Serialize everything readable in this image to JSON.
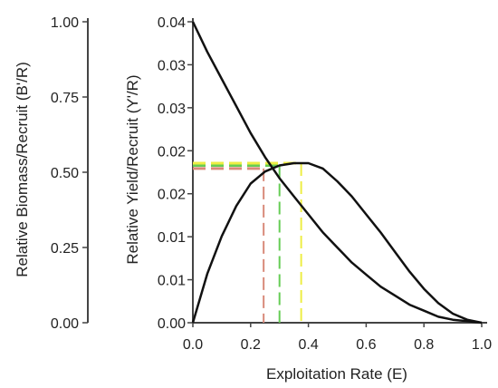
{
  "chart_data": {
    "type": "line",
    "xlabel": "Exploitation Rate (E)",
    "ylabel_left": "Relative Biomass/Recruit (B'/R)",
    "ylabel_right": "Relative Yield/Recruit (Y'/R)",
    "xlim": [
      0,
      1
    ],
    "ylim_yield": [
      0,
      0.04
    ],
    "ylim_biomass": [
      0,
      1
    ],
    "x_ticks": [
      "0.0",
      "0.2",
      "0.4",
      "0.6",
      "0.8",
      "1.0"
    ],
    "yield_ticks": [
      "0.00",
      "0.01",
      "0.01",
      "0.02",
      "0.02",
      "0.03",
      "0.03",
      "0.04"
    ],
    "biomass_ticks": [
      "0.00",
      "0.25",
      "0.50",
      "0.75",
      "1.00"
    ],
    "highlight_biomass_tick": "0.50",
    "colors": {
      "curve": "#111111",
      "highlight_tick": "#d42020",
      "E_050": "#d98a7a",
      "E_01": "#66cc55",
      "E_max": "#eeee44"
    },
    "series": [
      {
        "role": "biomass_per_recruit",
        "axis": "left",
        "x": [
          0,
          0.05,
          0.1,
          0.15,
          0.2,
          0.25,
          0.3,
          0.35,
          0.4,
          0.45,
          0.5,
          0.55,
          0.6,
          0.65,
          0.7,
          0.75,
          0.8,
          0.85,
          0.9,
          0.95,
          1.0
        ],
        "y": [
          1.0,
          0.9,
          0.81,
          0.72,
          0.63,
          0.55,
          0.48,
          0.42,
          0.36,
          0.3,
          0.25,
          0.2,
          0.16,
          0.12,
          0.09,
          0.06,
          0.04,
          0.02,
          0.01,
          0.005,
          0.0
        ]
      },
      {
        "role": "yield_per_recruit",
        "axis": "right",
        "x": [
          0,
          0.05,
          0.1,
          0.15,
          0.2,
          0.25,
          0.3,
          0.35,
          0.4,
          0.45,
          0.5,
          0.55,
          0.6,
          0.65,
          0.7,
          0.75,
          0.8,
          0.85,
          0.9,
          0.95,
          1.0
        ],
        "y": [
          0.0,
          0.0065,
          0.0115,
          0.0155,
          0.0185,
          0.0201,
          0.0209,
          0.0212,
          0.0212,
          0.0205,
          0.0188,
          0.0168,
          0.0144,
          0.012,
          0.0094,
          0.0068,
          0.0045,
          0.0026,
          0.0012,
          0.0004,
          0.0
        ]
      }
    ],
    "reference_lines": [
      {
        "role": "E_050",
        "x": 0.245,
        "y": 0.0205
      },
      {
        "role": "E_01",
        "x": 0.3,
        "y": 0.0209
      },
      {
        "role": "E_max",
        "x": 0.375,
        "y": 0.0212
      }
    ]
  }
}
